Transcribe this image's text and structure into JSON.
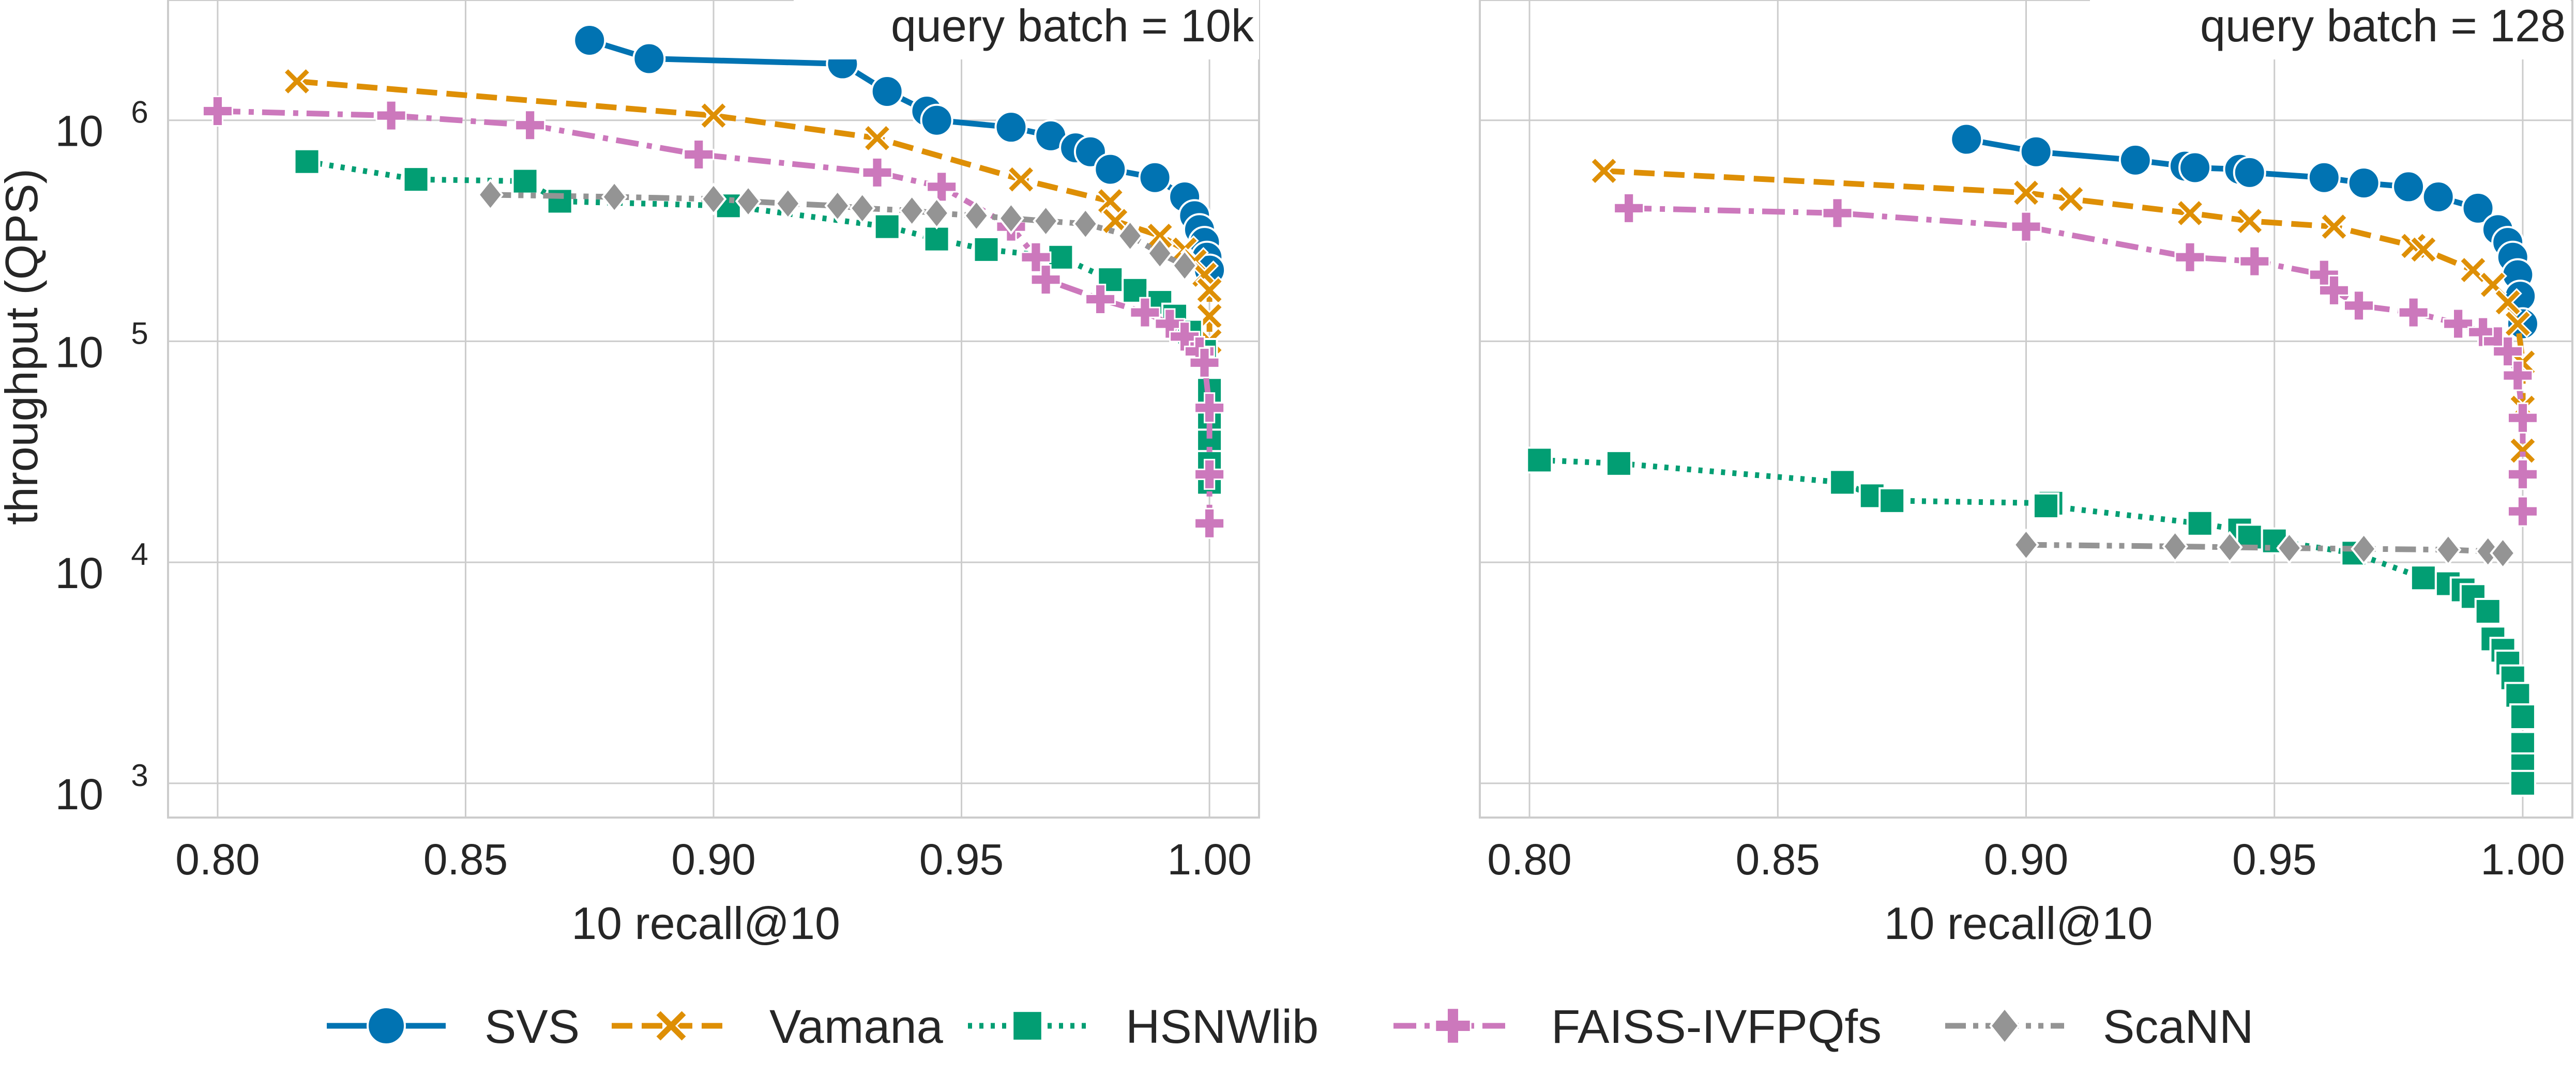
{
  "chart_data": [
    {
      "type": "line",
      "title": "query batch = 10k",
      "xlabel": "10 recall@10",
      "ylabel": "throughput (QPS)",
      "xlim": [
        0.79,
        1.01
      ],
      "ylim": [
        700,
        3500000
      ],
      "yscale": "log",
      "grid": true,
      "x_ticks": [
        "0.80",
        "0.85",
        "0.90",
        "0.95",
        "1.00"
      ],
      "y_ticks": [
        {
          "base": "10",
          "exp": "3"
        },
        {
          "base": "10",
          "exp": "4"
        },
        {
          "base": "10",
          "exp": "5"
        },
        {
          "base": "10",
          "exp": "6"
        }
      ],
      "series": [
        {
          "name": "SVS",
          "x": [
            0.875,
            0.887,
            0.926,
            0.935,
            0.943,
            0.945,
            0.96,
            0.968,
            0.973,
            0.976,
            0.98,
            0.989,
            0.995,
            0.997,
            0.998,
            0.999,
            0.9995,
            1.0
          ],
          "y": [
            2300000,
            1900000,
            1800000,
            1350000,
            1100000,
            1000000,
            930000,
            850000,
            750000,
            720000,
            600000,
            550000,
            450000,
            370000,
            320000,
            280000,
            240000,
            210000
          ]
        },
        {
          "name": "Vamana",
          "x": [
            0.816,
            0.9,
            0.933,
            0.962,
            0.98,
            0.981,
            0.99,
            0.995,
            0.997,
            0.999,
            1.0,
            1.0,
            1.0
          ],
          "y": [
            1500000,
            1050000,
            830000,
            540000,
            430000,
            350000,
            300000,
            260000,
            230000,
            200000,
            170000,
            130000,
            100000
          ]
        },
        {
          "name": "HSNWlib",
          "x": [
            0.818,
            0.84,
            0.862,
            0.869,
            0.903,
            0.935,
            0.945,
            0.955,
            0.97,
            0.98,
            0.985,
            0.99,
            0.993,
            0.996,
            0.999,
            1.0,
            1.0,
            1.0,
            1.0,
            1.0
          ],
          "y": [
            650000,
            540000,
            530000,
            430000,
            410000,
            330000,
            290000,
            260000,
            240000,
            190000,
            170000,
            150000,
            130000,
            110000,
            90000,
            60000,
            45000,
            35000,
            28000,
            23000
          ]
        },
        {
          "name": "FAISS-IVFPQfs",
          "x": [
            0.8,
            0.835,
            0.863,
            0.897,
            0.933,
            0.946,
            0.96,
            0.965,
            0.967,
            0.978,
            0.987,
            0.992,
            0.995,
            0.998,
            0.999,
            1.0,
            1.0,
            1.0
          ],
          "y": [
            1100000,
            1050000,
            950000,
            700000,
            580000,
            500000,
            330000,
            240000,
            190000,
            155000,
            135000,
            120000,
            105000,
            90000,
            80000,
            50000,
            25000,
            15000
          ]
        },
        {
          "name": "ScaNN",
          "x": [
            0.855,
            0.88,
            0.9,
            0.907,
            0.915,
            0.925,
            0.93,
            0.94,
            0.945,
            0.953,
            0.96,
            0.967,
            0.975,
            0.984,
            0.99,
            0.995
          ],
          "y": [
            460000,
            450000,
            440000,
            430000,
            420000,
            410000,
            400000,
            390000,
            380000,
            370000,
            360000,
            350000,
            340000,
            300000,
            250000,
            220000
          ]
        }
      ]
    },
    {
      "type": "line",
      "title": "query batch = 128",
      "xlabel": "10 recall@10",
      "ylabel": "",
      "xlim": [
        0.79,
        1.01
      ],
      "ylim": [
        700,
        3500000
      ],
      "yscale": "log",
      "grid": true,
      "x_ticks": [
        "0.80",
        "0.85",
        "0.90",
        "0.95",
        "1.00"
      ],
      "series": [
        {
          "name": "SVS",
          "x": [
            0.888,
            0.902,
            0.922,
            0.932,
            0.934,
            0.943,
            0.945,
            0.96,
            0.968,
            0.977,
            0.983,
            0.991,
            0.995,
            0.997,
            0.998,
            0.999,
            0.9995,
            1.0
          ],
          "y": [
            820000,
            720000,
            660000,
            620000,
            610000,
            600000,
            580000,
            550000,
            520000,
            500000,
            450000,
            400000,
            320000,
            280000,
            240000,
            200000,
            160000,
            120000
          ]
        },
        {
          "name": "Vamana",
          "x": [
            0.815,
            0.9,
            0.909,
            0.933,
            0.945,
            0.962,
            0.978,
            0.98,
            0.99,
            0.994,
            0.997,
            0.999,
            1.0,
            1.0,
            1.0
          ],
          "y": [
            590000,
            470000,
            440000,
            380000,
            350000,
            330000,
            270000,
            260000,
            210000,
            180000,
            150000,
            120000,
            80000,
            50000,
            32000
          ]
        },
        {
          "name": "HSNWlib",
          "x": [
            0.802,
            0.818,
            0.863,
            0.869,
            0.873,
            0.905,
            0.904,
            0.935,
            0.943,
            0.945,
            0.95,
            0.966,
            0.98,
            0.985,
            0.988,
            0.99,
            0.993,
            0.994,
            0.996,
            0.997,
            0.998,
            0.999,
            1.0,
            1.0,
            1.0,
            1.0
          ],
          "y": [
            29000,
            28000,
            23000,
            20000,
            19000,
            18500,
            18000,
            15000,
            14000,
            13000,
            12500,
            11000,
            8500,
            8000,
            7500,
            7000,
            6000,
            4500,
            4000,
            3500,
            3000,
            2500,
            2000,
            1500,
            1200,
            1000
          ]
        },
        {
          "name": "FAISS-IVFPQfs",
          "x": [
            0.82,
            0.862,
            0.9,
            0.933,
            0.946,
            0.96,
            0.962,
            0.967,
            0.978,
            0.987,
            0.992,
            0.995,
            0.997,
            0.999,
            1.0,
            1.0,
            1.0
          ],
          "y": [
            400000,
            380000,
            330000,
            240000,
            230000,
            200000,
            170000,
            145000,
            135000,
            120000,
            110000,
            100000,
            90000,
            70000,
            45000,
            25000,
            17000
          ]
        },
        {
          "name": "ScaNN",
          "x": [
            0.9,
            0.93,
            0.941,
            0.953,
            0.968,
            0.985,
            0.993,
            0.996
          ],
          "y": [
            12000,
            11800,
            11700,
            11600,
            11500,
            11400,
            11200,
            11000
          ]
        }
      ]
    }
  ],
  "legend": {
    "placement": "bottom",
    "entries": [
      {
        "name": "SVS",
        "color": "#0173b2",
        "marker": "circle",
        "dash": "solid"
      },
      {
        "name": "Vamana",
        "color": "#de8f05",
        "marker": "x",
        "dash": "dashed"
      },
      {
        "name": "HSNWlib",
        "color": "#029e73",
        "marker": "square",
        "dash": "dotted"
      },
      {
        "name": "FAISS-IVFPQfs",
        "color": "#cc78bc",
        "marker": "plus",
        "dash": "dashdot"
      },
      {
        "name": "ScaNN",
        "color": "#949494",
        "marker": "diamond",
        "dash": "dashdotdot"
      }
    ]
  }
}
